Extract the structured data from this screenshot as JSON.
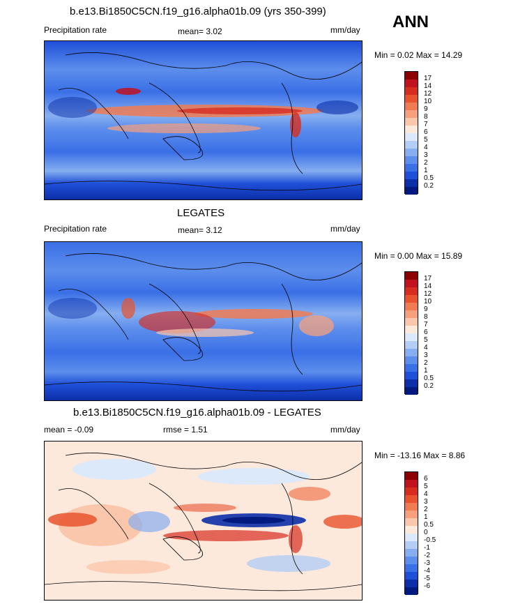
{
  "season": "ANN",
  "panels": [
    {
      "title": "b.e13.Bi1850C5CN.f19_g16.alpha01b.09 (yrs 350-399)",
      "left_label": "Precipitation rate",
      "mid_label": "mean=   3.02",
      "right_label": "mm/day",
      "minmax": "Min =   0.02 Max =  14.29",
      "levels": [
        "17",
        "14",
        "12",
        "10",
        "9",
        "8",
        "7",
        "6",
        "5",
        "4",
        "3",
        "2",
        "1",
        "0.5",
        "0.2"
      ],
      "colors": [
        "#8b0000",
        "#c1121f",
        "#d62d20",
        "#e8532d",
        "#f07b53",
        "#f6a07e",
        "#fbc7ac",
        "#fde8dc",
        "#dbe9fb",
        "#b3cdf5",
        "#86aef0",
        "#5d8eec",
        "#3a6fe6",
        "#1f4fd8",
        "#0c2fa8",
        "#001a80"
      ]
    },
    {
      "title": "LEGATES",
      "left_label": "Precipitation rate",
      "mid_label": "mean=   3.12",
      "right_label": "mm/day",
      "minmax": "Min =   0.00 Max =  15.89",
      "levels": [
        "17",
        "14",
        "12",
        "10",
        "9",
        "8",
        "7",
        "6",
        "5",
        "4",
        "3",
        "2",
        "1",
        "0.5",
        "0.2"
      ],
      "colors": [
        "#8b0000",
        "#c1121f",
        "#d62d20",
        "#e8532d",
        "#f07b53",
        "#f6a07e",
        "#fbc7ac",
        "#fde8dc",
        "#dbe9fb",
        "#b3cdf5",
        "#86aef0",
        "#5d8eec",
        "#3a6fe6",
        "#1f4fd8",
        "#0c2fa8",
        "#001a80"
      ]
    },
    {
      "title": "b.e13.Bi1850C5CN.f19_g16.alpha01b.09 - LEGATES",
      "left_label": "mean =  -0.09",
      "mid_label": "rmse =   1.51",
      "right_label": "mm/day",
      "minmax": "Min = -13.16 Max =   8.86",
      "levels": [
        "6",
        "5",
        "4",
        "3",
        "2",
        "1",
        "0.5",
        "0",
        "-0.5",
        "-1",
        "-2",
        "-3",
        "-4",
        "-5",
        "-6"
      ],
      "colors": [
        "#8b0000",
        "#c1121f",
        "#d62d20",
        "#e8532d",
        "#f07b53",
        "#f6a07e",
        "#fbc7ac",
        "#fde8dc",
        "#dbe9fb",
        "#b3cdf5",
        "#86aef0",
        "#5d8eec",
        "#3a6fe6",
        "#1f4fd8",
        "#0c2fa8",
        "#001a80"
      ]
    }
  ]
}
